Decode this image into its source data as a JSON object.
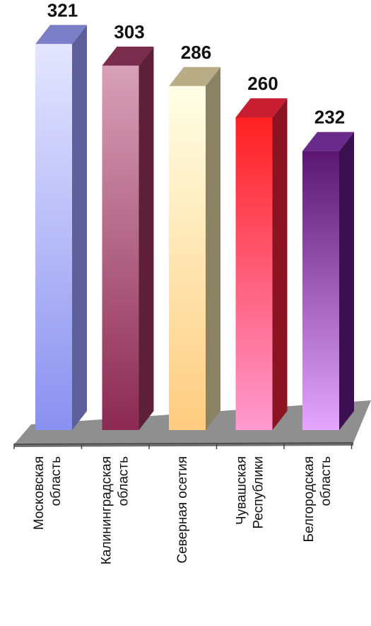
{
  "chart_data": {
    "type": "bar",
    "style": "3d-column",
    "title": "",
    "xlabel": "",
    "ylabel": "",
    "ylim": [
      0,
      340
    ],
    "grid": false,
    "legend": "none",
    "categories": [
      [
        "Московская",
        "область"
      ],
      [
        "Калининградская",
        "область"
      ],
      [
        "Северная осетия"
      ],
      [
        "Чувашская",
        "Республики"
      ],
      [
        "Белгородская",
        "область"
      ]
    ],
    "values": [
      321,
      303,
      286,
      260,
      232
    ],
    "data_labels": [
      "321",
      "303",
      "286",
      "260",
      "232"
    ],
    "colors": [
      {
        "light": "#e4e6ff",
        "dark": "#8a90f0",
        "side": "#5c5f99",
        "top": "#7b7fc7"
      },
      {
        "light": "#d8a0b8",
        "dark": "#8c2a52",
        "side": "#5e2038",
        "top": "#7a2c4c"
      },
      {
        "light": "#ffffe6",
        "dark": "#ffcc80",
        "side": "#8a8262",
        "top": "#b8ad86"
      },
      {
        "light": "#ff2020",
        "dark": "#ff9ad0",
        "side": "#8c1422",
        "top": "#c81e32"
      },
      {
        "light": "#5a1670",
        "dark": "#e4a6ff",
        "side": "#3a1050",
        "top": "#6a2a8a"
      }
    ],
    "floor_color": "#8f8f8f",
    "floor_shade": "#6e6e6e"
  }
}
